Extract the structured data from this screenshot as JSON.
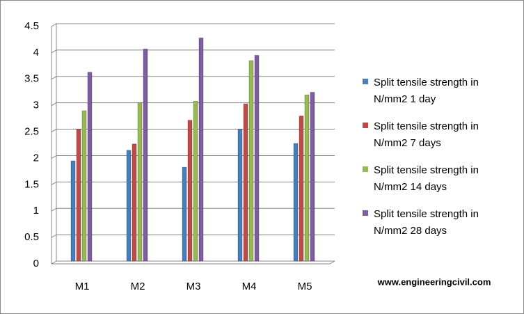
{
  "chart_data": {
    "type": "bar",
    "categories": [
      "M1",
      "M2",
      "M3",
      "M4",
      "M5"
    ],
    "series": [
      {
        "name": "Split tensile strength in N/mm2 1 day",
        "color": "#4a7ebb",
        "values": [
          1.9,
          2.1,
          1.78,
          2.5,
          2.23
        ]
      },
      {
        "name": "Split tensile strength in N/mm2 7 days",
        "color": "#be4b48",
        "values": [
          2.5,
          2.22,
          2.67,
          2.98,
          2.75
        ]
      },
      {
        "name": "Split tensile strength in N/mm2 14 days",
        "color": "#98b954",
        "values": [
          2.85,
          3.0,
          3.03,
          3.8,
          3.15
        ]
      },
      {
        "name": "Split tensile strength in N/mm2 28 days",
        "color": "#7d5fa0",
        "values": [
          3.58,
          4.02,
          4.23,
          3.9,
          3.2
        ]
      }
    ],
    "ylim": [
      0,
      4.5
    ],
    "yticks": [
      0,
      0.5,
      1,
      1.5,
      2,
      2.5,
      3,
      3.5,
      4,
      4.5
    ],
    "grid": true,
    "legend": "right",
    "annotation": "www.engineeringcivil.com"
  }
}
